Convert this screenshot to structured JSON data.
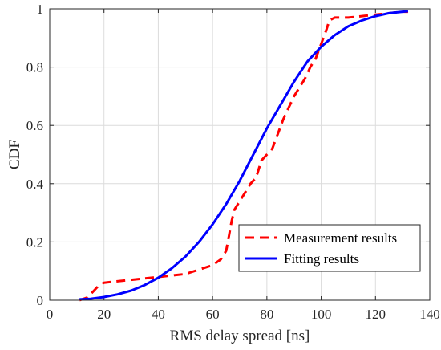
{
  "chart_data": {
    "type": "line",
    "xlabel": "RMS delay spread [ns]",
    "ylabel": "CDF",
    "xlim": [
      0,
      140
    ],
    "ylim": [
      0,
      1
    ],
    "xticks": [
      "0",
      "20",
      "40",
      "60",
      "80",
      "100",
      "120",
      "140"
    ],
    "yticks": [
      "0",
      "0.2",
      "0.4",
      "0.6",
      "0.8",
      "1"
    ],
    "grid": true,
    "legend_position": "bottom-right",
    "series": [
      {
        "name": "Measurement results",
        "color": "#ff0000",
        "style": "dashed",
        "x": [
          11,
          14,
          16,
          18,
          20,
          30,
          40,
          50,
          60,
          63,
          65,
          66,
          67,
          68,
          70,
          72,
          74,
          76,
          78,
          80,
          82,
          84,
          86,
          88,
          90,
          92,
          94,
          96,
          98,
          100,
          102,
          103,
          105,
          110,
          120,
          130,
          132
        ],
        "y": [
          0.0,
          0.01,
          0.03,
          0.05,
          0.06,
          0.07,
          0.08,
          0.09,
          0.12,
          0.14,
          0.17,
          0.22,
          0.27,
          0.31,
          0.34,
          0.37,
          0.4,
          0.42,
          0.48,
          0.5,
          0.52,
          0.57,
          0.62,
          0.66,
          0.7,
          0.73,
          0.76,
          0.8,
          0.83,
          0.88,
          0.93,
          0.96,
          0.97,
          0.97,
          0.98,
          0.99,
          0.99
        ]
      },
      {
        "name": "Fitting results",
        "color": "#0000ff",
        "style": "solid",
        "x": [
          11,
          15,
          20,
          25,
          30,
          35,
          40,
          45,
          50,
          55,
          60,
          65,
          70,
          75,
          80,
          85,
          90,
          95,
          100,
          105,
          110,
          115,
          120,
          125,
          130,
          132
        ],
        "y": [
          0.003,
          0.005,
          0.011,
          0.02,
          0.033,
          0.052,
          0.077,
          0.11,
          0.15,
          0.2,
          0.26,
          0.33,
          0.41,
          0.5,
          0.59,
          0.67,
          0.75,
          0.82,
          0.87,
          0.91,
          0.94,
          0.96,
          0.975,
          0.985,
          0.99,
          0.992
        ]
      }
    ]
  }
}
